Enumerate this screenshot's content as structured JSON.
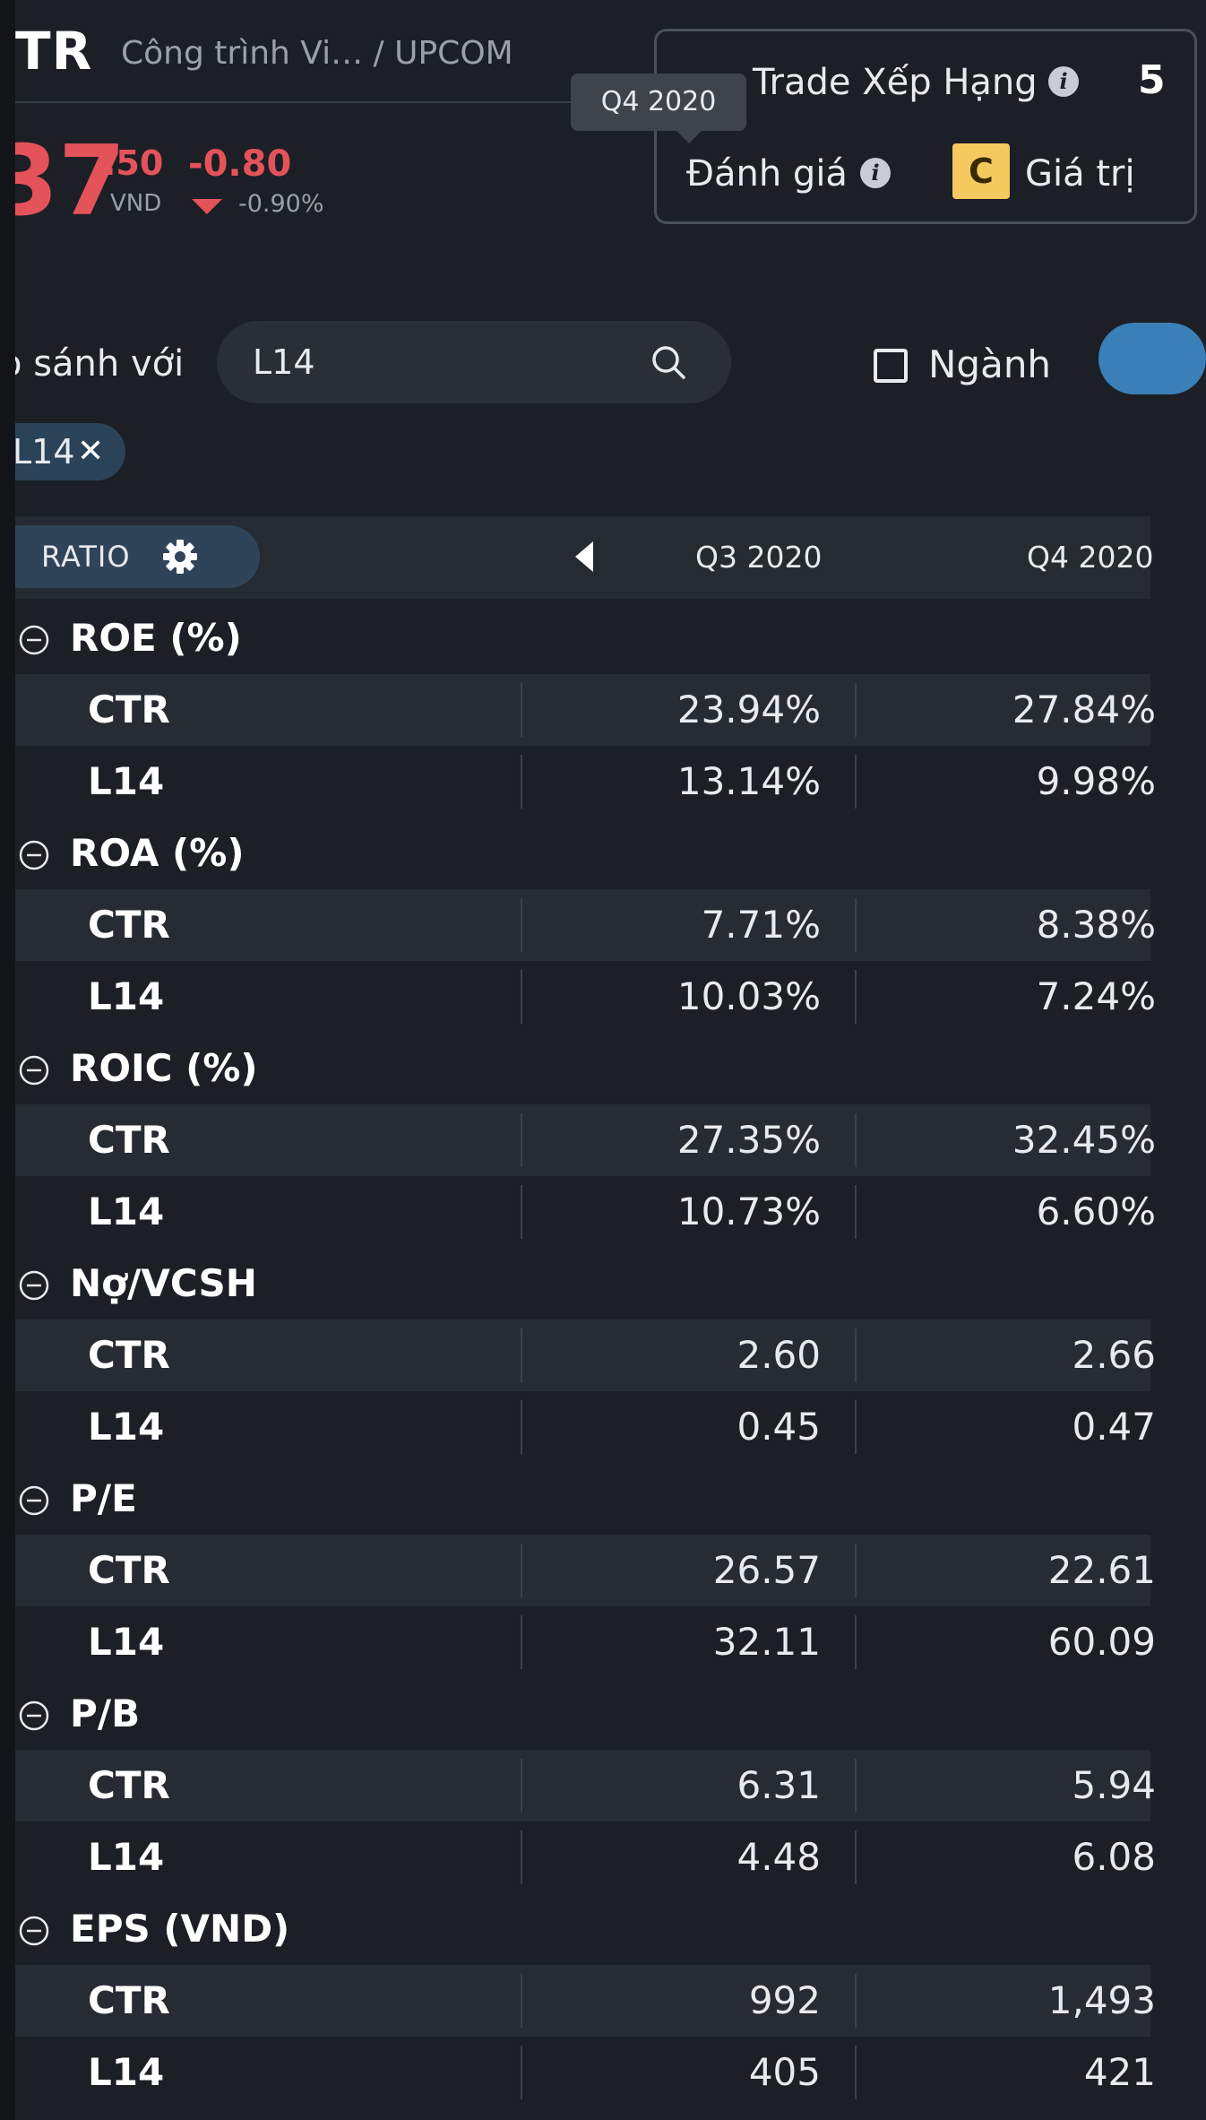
{
  "header": {
    "ticker": "TR",
    "company": "Công trình Vi… / UPCOM",
    "price_int": "37",
    "price_dec": ".50",
    "price_unit": "VND",
    "change": "-0.80",
    "change_pct": "-0.90%",
    "down_color": "#e5535a"
  },
  "ranking": {
    "title": "Trade Xếp Hạng",
    "value": "5",
    "rating_label": "Đánh giá",
    "grade": "C",
    "grade_label": "Giá trị",
    "info_glyph": "i"
  },
  "tooltip": {
    "text": "Q4 2020"
  },
  "compare": {
    "label": "o sánh với",
    "search_value": "L14",
    "industry_label": "Ngành",
    "chip_label": "L14",
    "chip_close": "✕"
  },
  "table": {
    "ratio_label": "RATIO",
    "columns": [
      "Q3 2020",
      "Q4 2020"
    ],
    "groups": [
      {
        "title": "ROE (%)",
        "rows": [
          {
            "label": "CTR",
            "values": [
              "23.94%",
              "27.84%"
            ]
          },
          {
            "label": "L14",
            "values": [
              "13.14%",
              "9.98%"
            ]
          }
        ]
      },
      {
        "title": "ROA (%)",
        "rows": [
          {
            "label": "CTR",
            "values": [
              "7.71%",
              "8.38%"
            ]
          },
          {
            "label": "L14",
            "values": [
              "10.03%",
              "7.24%"
            ]
          }
        ]
      },
      {
        "title": "ROIC (%)",
        "rows": [
          {
            "label": "CTR",
            "values": [
              "27.35%",
              "32.45%"
            ]
          },
          {
            "label": "L14",
            "values": [
              "10.73%",
              "6.60%"
            ]
          }
        ]
      },
      {
        "title": "Nợ/VCSH",
        "rows": [
          {
            "label": "CTR",
            "values": [
              "2.60",
              "2.66"
            ]
          },
          {
            "label": "L14",
            "values": [
              "0.45",
              "0.47"
            ]
          }
        ]
      },
      {
        "title": "P/E",
        "rows": [
          {
            "label": "CTR",
            "values": [
              "26.57",
              "22.61"
            ]
          },
          {
            "label": "L14",
            "values": [
              "32.11",
              "60.09"
            ]
          }
        ]
      },
      {
        "title": "P/B",
        "rows": [
          {
            "label": "CTR",
            "values": [
              "6.31",
              "5.94"
            ]
          },
          {
            "label": "L14",
            "values": [
              "4.48",
              "6.08"
            ]
          }
        ]
      },
      {
        "title": "EPS (VND)",
        "rows": [
          {
            "label": "CTR",
            "values": [
              "992",
              "1,493"
            ]
          },
          {
            "label": "L14",
            "values": [
              "405",
              "421"
            ]
          }
        ]
      }
    ]
  }
}
